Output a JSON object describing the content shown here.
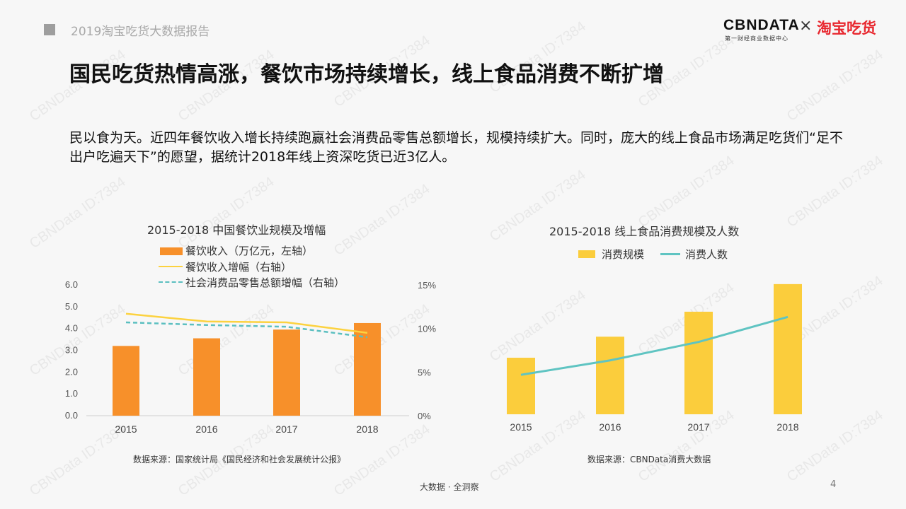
{
  "header": {
    "report_title": "2019淘宝吃货大数据报告",
    "logo_cbn": "CBNDATA",
    "logo_cbn_sub": "第一财经商业数据中心",
    "logo_times": "×",
    "logo_taobao": "淘宝吃货"
  },
  "main": {
    "headline": "国民吃货热情高涨，餐饮市场持续增长，线上食品消费不断扩增",
    "paragraph": "民以食为天。近四年餐饮收入增长持续跑赢社会消费品零售总额增长，规模持续扩大。同时，庞大的线上食品市场满足吃货们“足不出户吃遍天下”的愿望，据统计2018年线上资深吃货已近3亿人。"
  },
  "watermark": "CBNData ID:7384",
  "colors": {
    "orange": "#f7902a",
    "yellow": "#fbcd3c",
    "teal": "#5fc4c2",
    "dashed_teal": "#5bbfc0",
    "line_yellow": "#fcd23f"
  },
  "chart_data": [
    {
      "type": "bar",
      "title": "2015-2018 中国餐饮业规模及增幅",
      "categories": [
        "2015",
        "2016",
        "2017",
        "2018"
      ],
      "series": [
        {
          "name": "餐饮收入（万亿元，左轴）",
          "type": "bar",
          "axis": "left",
          "values": [
            3.2,
            3.55,
            3.95,
            4.25
          ]
        },
        {
          "name": "餐饮收入增幅（右轴）",
          "type": "line",
          "axis": "right",
          "values": [
            11.7,
            10.8,
            10.7,
            9.5
          ]
        },
        {
          "name": "社会消费品零售总额增幅（右轴）",
          "type": "line",
          "style": "dashed",
          "axis": "right",
          "values": [
            10.7,
            10.4,
            10.2,
            9.0
          ]
        }
      ],
      "y_left": {
        "range": [
          0,
          6
        ],
        "ticks": [
          "0.0",
          "1.0",
          "2.0",
          "3.0",
          "4.0",
          "5.0",
          "6.0"
        ]
      },
      "y_right": {
        "range": [
          0,
          15
        ],
        "ticks": [
          "0%",
          "5%",
          "10%",
          "15%"
        ]
      },
      "legend_position": "top",
      "grid": false,
      "source": "数据来源：国家统计局《国民经济和社会发展统计公报》"
    },
    {
      "type": "bar",
      "title": "2015-2018 线上食品消费规模及人数",
      "categories": [
        "2015",
        "2016",
        "2017",
        "2018"
      ],
      "series": [
        {
          "name": "消费规模",
          "type": "bar",
          "values": [
            0.43,
            0.59,
            0.78,
            0.99
          ]
        },
        {
          "name": "消费人数",
          "type": "line",
          "values": [
            0.3,
            0.41,
            0.55,
            0.74
          ]
        }
      ],
      "y_range": [
        0,
        1
      ],
      "axes_hidden": true,
      "legend_position": "top",
      "grid": false,
      "source": "数据来源：CBNData消费大数据"
    }
  ],
  "footer": {
    "slogan": "大数据 · 全洞察",
    "page": "4"
  }
}
